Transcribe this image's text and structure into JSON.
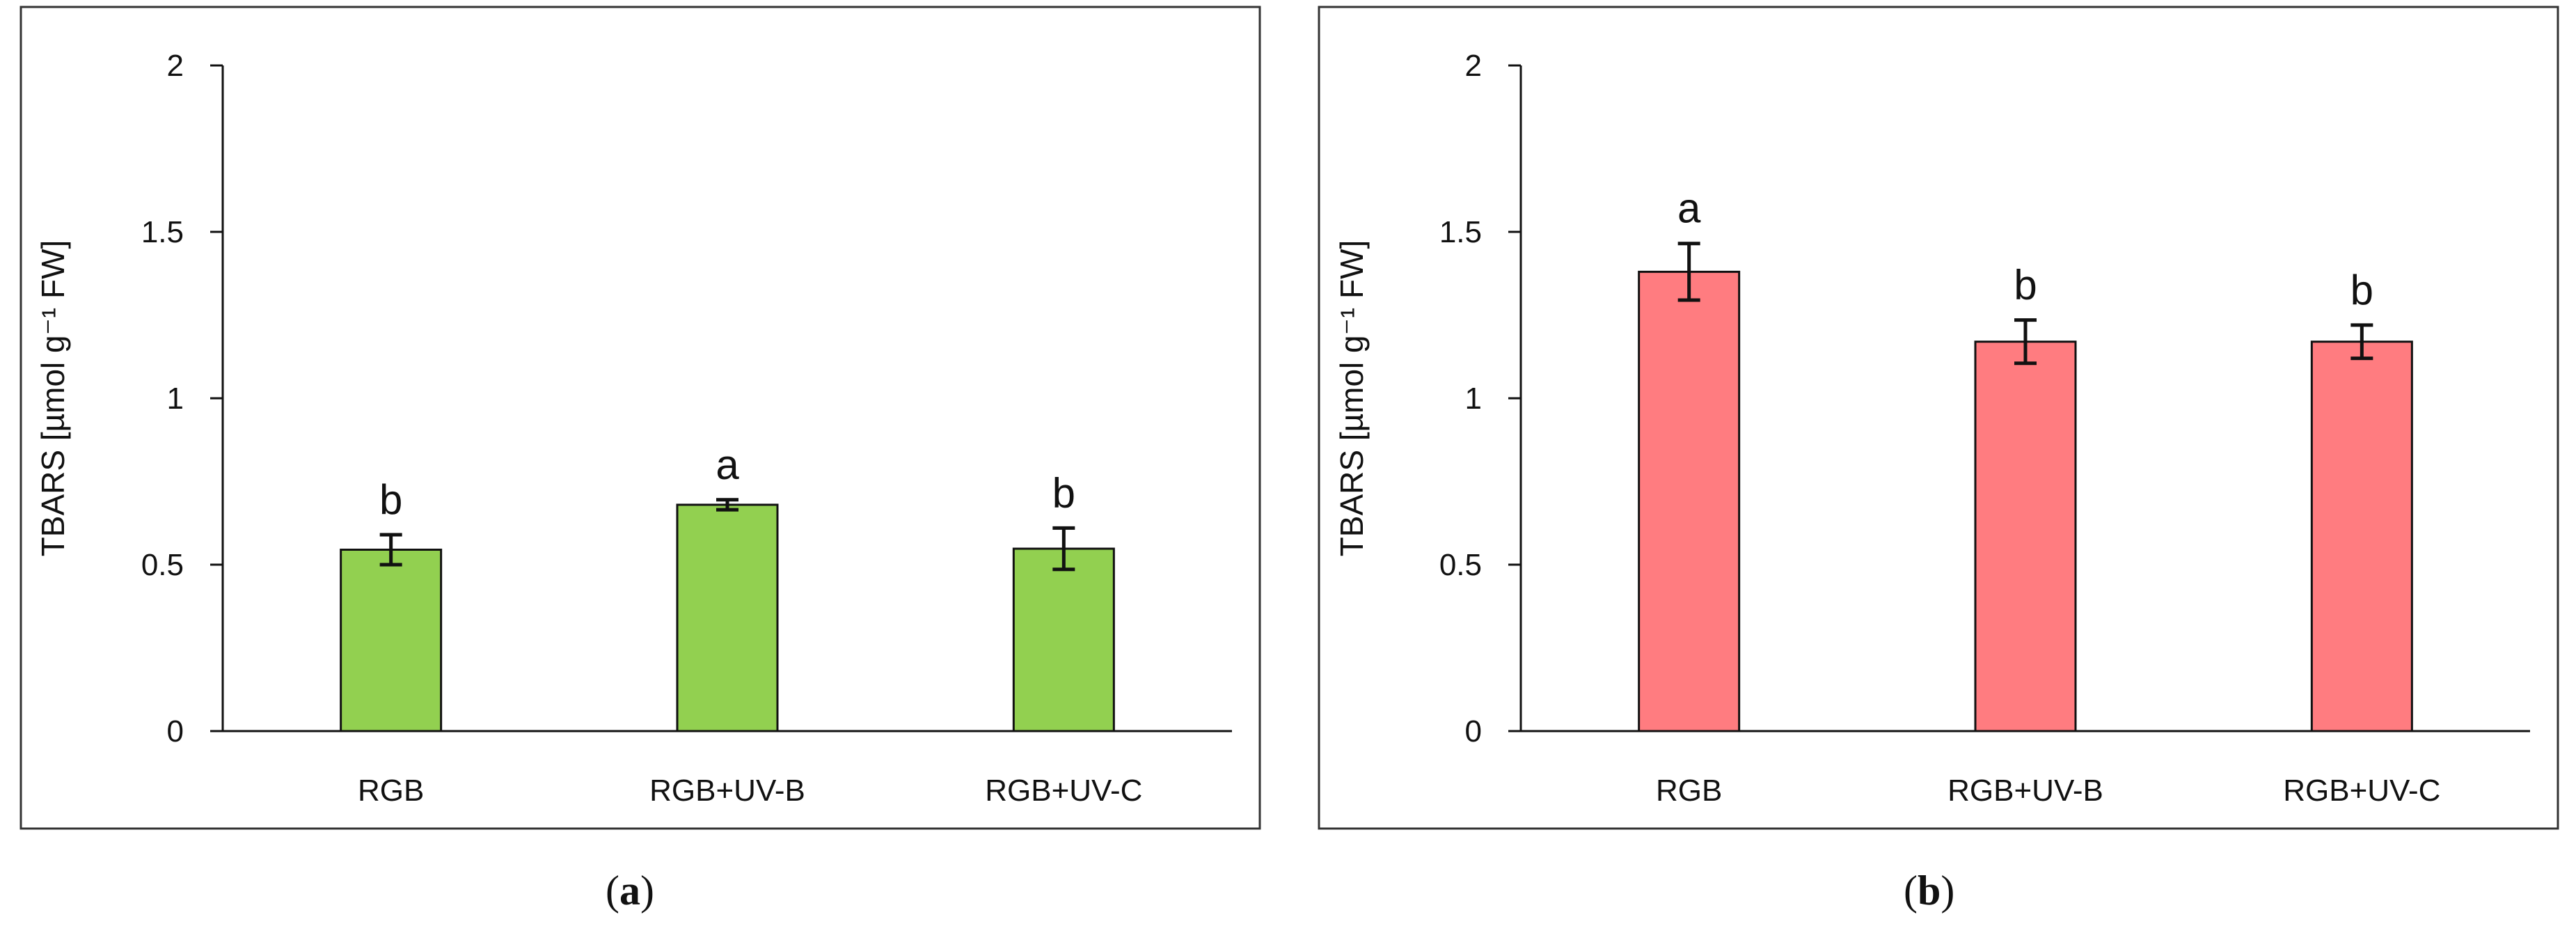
{
  "chart_data": [
    {
      "type": "bar",
      "panel_label": "a",
      "categories": [
        "RGB",
        "RGB+UV-B",
        "RGB+UV-C"
      ],
      "values": [
        0.545,
        0.68,
        0.548
      ],
      "errors": [
        0.045,
        0.015,
        0.062
      ],
      "significance": [
        "b",
        "a",
        "b"
      ],
      "ylabel": "TBARS [µmol g⁻¹ FW]",
      "ylim": [
        0,
        2
      ],
      "yticks": [
        0,
        0.5,
        1,
        1.5,
        2
      ],
      "ytick_labels": [
        "0",
        "0.5",
        "1",
        "1.5",
        "2"
      ],
      "bar_color": "#92d050",
      "grid": false,
      "legend": "none"
    },
    {
      "type": "bar",
      "panel_label": "b",
      "categories": [
        "RGB",
        "RGB+UV-B",
        "RGB+UV-C"
      ],
      "values": [
        1.38,
        1.17,
        1.17
      ],
      "errors": [
        0.085,
        0.065,
        0.05
      ],
      "significance": [
        "a",
        "b",
        "b"
      ],
      "ylabel": "TBARS [µmol g⁻¹ FW]",
      "ylim": [
        0,
        2
      ],
      "yticks": [
        0,
        0.5,
        1,
        1.5,
        2
      ],
      "ytick_labels": [
        "0",
        "0.5",
        "1",
        "1.5",
        "2"
      ],
      "bar_color": "#ff7c80",
      "grid": false,
      "legend": "none"
    }
  ],
  "captions": [
    {
      "open": "(",
      "label": "a",
      "close": ")"
    },
    {
      "open": "(",
      "label": "b",
      "close": ")"
    }
  ]
}
